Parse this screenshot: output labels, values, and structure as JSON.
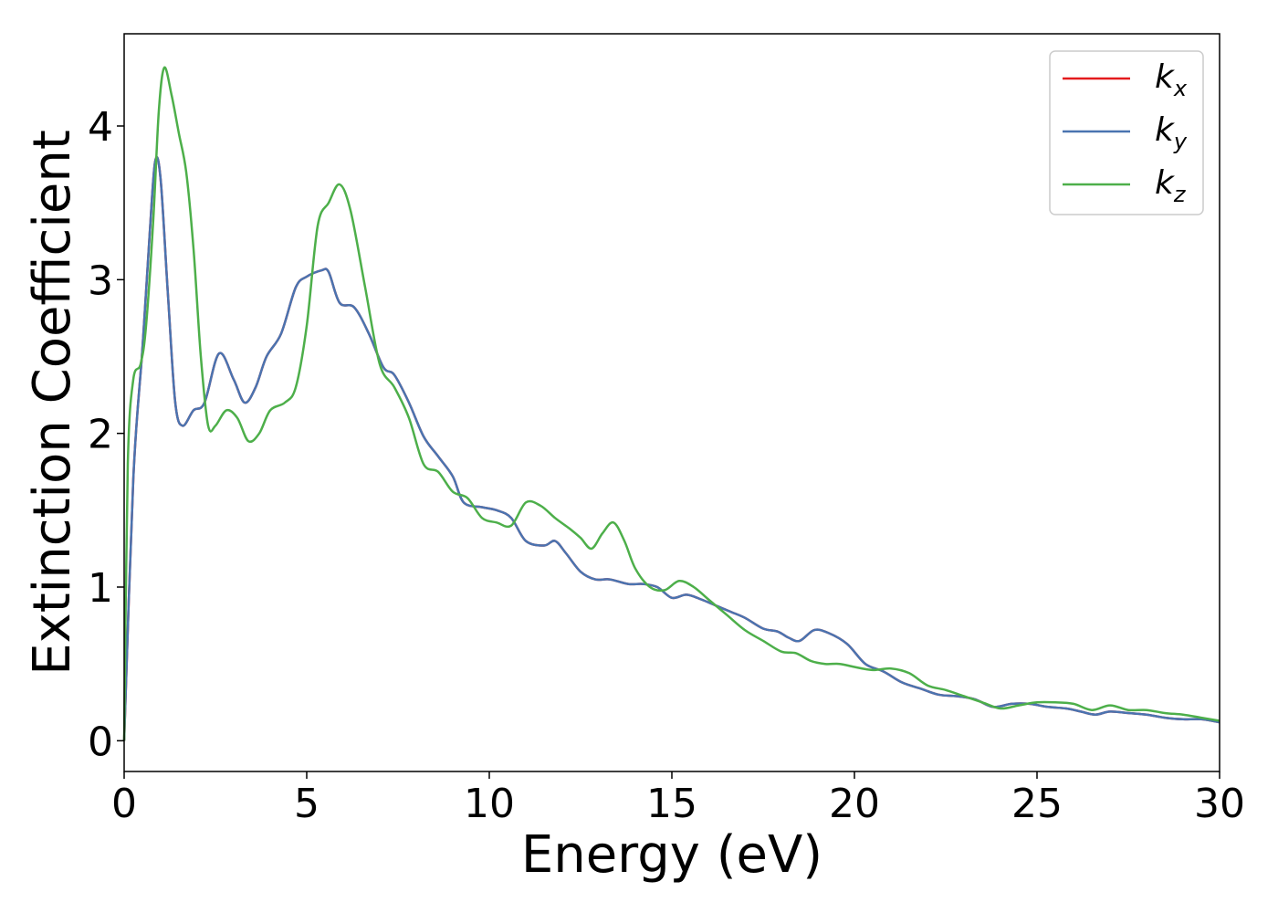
{
  "chart_data": {
    "type": "line",
    "title": "",
    "xlabel": "Energy (eV)",
    "ylabel": "Extinction Coefficient",
    "xlim": [
      0,
      30
    ],
    "ylim": [
      -0.2,
      4.6
    ],
    "xticks": [
      0,
      5,
      10,
      15,
      20,
      25,
      30
    ],
    "xtick_labels": [
      "0",
      "5",
      "10",
      "15",
      "20",
      "25",
      "30"
    ],
    "yticks": [
      0,
      1,
      2,
      3,
      4
    ],
    "ytick_labels": [
      "0",
      "1",
      "2",
      "3",
      "4"
    ],
    "grid": false,
    "legend": "top-right",
    "series": [
      {
        "name": "kx",
        "base": "k",
        "sub": "x",
        "color": "#e41a1c",
        "x": [
          0,
          0.25,
          0.5,
          0.7,
          0.85,
          1.0,
          1.2,
          1.4,
          1.6,
          1.9,
          2.2,
          2.6,
          3.0,
          3.3,
          3.6,
          3.9,
          4.3,
          4.7,
          5.0,
          5.4,
          5.6,
          5.9,
          6.3,
          6.7,
          7.1,
          7.4,
          7.8,
          8.2,
          8.6,
          9.0,
          9.3,
          9.8,
          10.2,
          10.6,
          11.0,
          11.5,
          11.8,
          12.1,
          12.5,
          12.9,
          13.3,
          13.8,
          14.2,
          14.6,
          15.0,
          15.4,
          15.8,
          16.2,
          16.6,
          17.0,
          17.5,
          17.9,
          18.2,
          18.5,
          18.9,
          19.3,
          19.8,
          20.3,
          20.8,
          21.3,
          21.8,
          22.3,
          22.8,
          23.3,
          23.8,
          24.3,
          24.8,
          25.3,
          25.8,
          26.2,
          26.6,
          27.0,
          27.5,
          28.0,
          28.5,
          29.0,
          29.5,
          30.0
        ],
        "y": [
          0.0,
          1.7,
          2.55,
          3.3,
          3.77,
          3.65,
          2.9,
          2.2,
          2.05,
          2.15,
          2.2,
          2.52,
          2.35,
          2.2,
          2.3,
          2.5,
          2.65,
          2.95,
          3.02,
          3.06,
          3.05,
          2.85,
          2.82,
          2.65,
          2.43,
          2.38,
          2.2,
          1.98,
          1.85,
          1.72,
          1.55,
          1.52,
          1.5,
          1.45,
          1.3,
          1.27,
          1.3,
          1.22,
          1.1,
          1.05,
          1.05,
          1.02,
          1.02,
          1.0,
          0.93,
          0.95,
          0.92,
          0.88,
          0.84,
          0.8,
          0.73,
          0.71,
          0.67,
          0.65,
          0.72,
          0.7,
          0.63,
          0.5,
          0.45,
          0.38,
          0.34,
          0.3,
          0.29,
          0.27,
          0.22,
          0.24,
          0.24,
          0.22,
          0.21,
          0.19,
          0.17,
          0.19,
          0.18,
          0.17,
          0.15,
          0.14,
          0.14,
          0.12
        ]
      },
      {
        "name": "ky",
        "base": "k",
        "sub": "y",
        "color": "#4a74b0",
        "x": [
          0,
          0.25,
          0.5,
          0.7,
          0.85,
          1.0,
          1.2,
          1.4,
          1.6,
          1.9,
          2.2,
          2.6,
          3.0,
          3.3,
          3.6,
          3.9,
          4.3,
          4.7,
          5.0,
          5.4,
          5.6,
          5.9,
          6.3,
          6.7,
          7.1,
          7.4,
          7.8,
          8.2,
          8.6,
          9.0,
          9.3,
          9.8,
          10.2,
          10.6,
          11.0,
          11.5,
          11.8,
          12.1,
          12.5,
          12.9,
          13.3,
          13.8,
          14.2,
          14.6,
          15.0,
          15.4,
          15.8,
          16.2,
          16.6,
          17.0,
          17.5,
          17.9,
          18.2,
          18.5,
          18.9,
          19.3,
          19.8,
          20.3,
          20.8,
          21.3,
          21.8,
          22.3,
          22.8,
          23.3,
          23.8,
          24.3,
          24.8,
          25.3,
          25.8,
          26.2,
          26.6,
          27.0,
          27.5,
          28.0,
          28.5,
          29.0,
          29.5,
          30.0
        ],
        "y": [
          0.0,
          1.7,
          2.55,
          3.3,
          3.77,
          3.65,
          2.9,
          2.2,
          2.05,
          2.15,
          2.2,
          2.52,
          2.35,
          2.2,
          2.3,
          2.5,
          2.65,
          2.95,
          3.02,
          3.06,
          3.05,
          2.85,
          2.82,
          2.65,
          2.43,
          2.38,
          2.2,
          1.98,
          1.85,
          1.72,
          1.55,
          1.52,
          1.5,
          1.45,
          1.3,
          1.27,
          1.3,
          1.22,
          1.1,
          1.05,
          1.05,
          1.02,
          1.02,
          1.0,
          0.93,
          0.95,
          0.92,
          0.88,
          0.84,
          0.8,
          0.73,
          0.71,
          0.67,
          0.65,
          0.72,
          0.7,
          0.63,
          0.5,
          0.45,
          0.38,
          0.34,
          0.3,
          0.29,
          0.27,
          0.22,
          0.24,
          0.24,
          0.22,
          0.21,
          0.19,
          0.17,
          0.19,
          0.18,
          0.17,
          0.15,
          0.14,
          0.14,
          0.12
        ]
      },
      {
        "name": "kz",
        "base": "k",
        "sub": "z",
        "color": "#4daf4a",
        "x": [
          0,
          0.1,
          0.25,
          0.45,
          0.6,
          0.8,
          0.95,
          1.1,
          1.3,
          1.5,
          1.7,
          1.9,
          2.1,
          2.3,
          2.5,
          2.8,
          3.1,
          3.4,
          3.7,
          4.0,
          4.4,
          4.7,
          5.0,
          5.3,
          5.6,
          5.9,
          6.2,
          6.6,
          7.0,
          7.4,
          7.8,
          8.2,
          8.6,
          9.0,
          9.4,
          9.8,
          10.2,
          10.6,
          11.0,
          11.4,
          11.8,
          12.2,
          12.5,
          12.8,
          13.1,
          13.4,
          13.7,
          14.0,
          14.4,
          14.8,
          15.2,
          15.6,
          16.0,
          16.5,
          17.0,
          17.5,
          18.0,
          18.4,
          18.8,
          19.2,
          19.6,
          20.0,
          20.5,
          21.0,
          21.5,
          22.0,
          22.5,
          23.0,
          23.5,
          24.0,
          24.5,
          25.0,
          25.5,
          26.0,
          26.5,
          27.0,
          27.5,
          28.0,
          28.5,
          29.0,
          29.5,
          30.0
        ],
        "y": [
          0.0,
          1.8,
          2.35,
          2.45,
          2.7,
          3.4,
          4.1,
          4.38,
          4.2,
          3.95,
          3.7,
          3.2,
          2.5,
          2.05,
          2.05,
          2.15,
          2.1,
          1.95,
          2.0,
          2.15,
          2.2,
          2.3,
          2.7,
          3.35,
          3.5,
          3.62,
          3.45,
          2.95,
          2.45,
          2.3,
          2.1,
          1.8,
          1.75,
          1.62,
          1.58,
          1.45,
          1.42,
          1.4,
          1.55,
          1.53,
          1.45,
          1.38,
          1.32,
          1.25,
          1.35,
          1.42,
          1.3,
          1.12,
          1.0,
          0.98,
          1.04,
          1.0,
          0.92,
          0.82,
          0.72,
          0.65,
          0.58,
          0.57,
          0.52,
          0.5,
          0.5,
          0.48,
          0.46,
          0.47,
          0.44,
          0.36,
          0.33,
          0.29,
          0.25,
          0.21,
          0.23,
          0.25,
          0.25,
          0.24,
          0.2,
          0.23,
          0.2,
          0.2,
          0.18,
          0.17,
          0.15,
          0.13
        ]
      }
    ]
  }
}
